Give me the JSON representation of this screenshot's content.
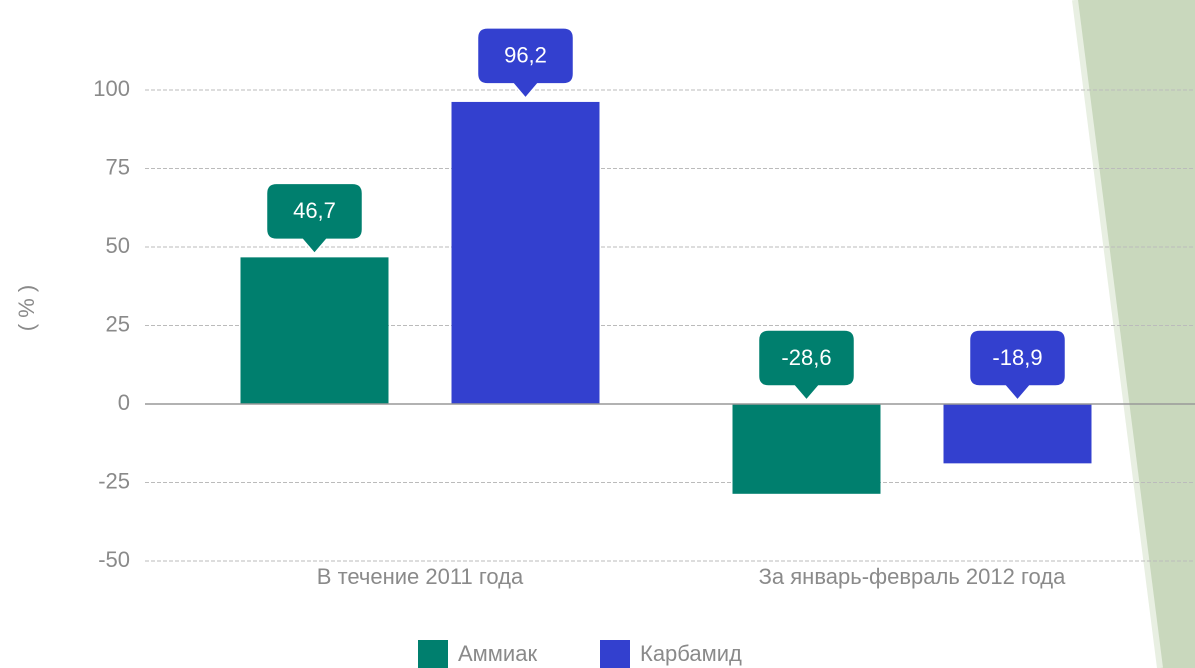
{
  "chart_data": {
    "type": "bar",
    "categories": [
      "В течение 2011 года",
      "За январь-февраль 2012 года"
    ],
    "series": [
      {
        "name": "Аммиак",
        "color": "#007f6e",
        "values": [
          46.7,
          -28.6
        ],
        "value_labels": [
          "46,7",
          "-28,6"
        ]
      },
      {
        "name": "Карбамид",
        "color": "#3340cf",
        "values": [
          96.2,
          -18.9
        ],
        "value_labels": [
          "96,2",
          "-18,9"
        ]
      }
    ],
    "ylabel": "( % )",
    "ylim": [
      -50,
      100
    ],
    "yticks": [
      -50,
      -25,
      0,
      25,
      50,
      75,
      100
    ],
    "grid": true,
    "legend": "bottom"
  }
}
